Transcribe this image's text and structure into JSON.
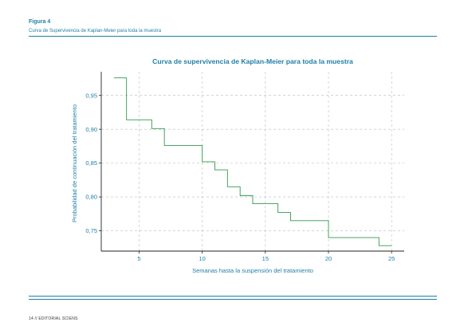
{
  "header": {
    "figure_label": "Figura 4",
    "figure_caption": "Curva de Supervivencia de Kaplan-Meier para toda la muestra"
  },
  "footer": {
    "text": "14 // EDITORIAL SCIENS"
  },
  "colors": {
    "accent": "#1f7fa8",
    "series": "#2f9a4f",
    "grid": "#bbbbbb"
  },
  "chart_data": {
    "type": "line",
    "step": true,
    "title": "Curva de supervivencia de Kaplan-Meier para toda la muestra",
    "xlabel": "Semanas hasta la suspensión del tratamiento",
    "ylabel": "Probabilidad de continuación del tratamiento",
    "xlim": [
      2,
      26
    ],
    "ylim": [
      0.72,
      0.985
    ],
    "xticks": [
      5,
      10,
      15,
      20,
      25
    ],
    "yticks": [
      0.75,
      0.8,
      0.85,
      0.9,
      0.95
    ],
    "xtick_labels": [
      "5",
      "10",
      "15",
      "20",
      "25"
    ],
    "ytick_labels": [
      "0,75",
      "0,80",
      "0,85",
      "0,90",
      "0,95"
    ],
    "grid": true,
    "series": [
      {
        "x": [
          3,
          4,
          4,
          6,
          6,
          7,
          7,
          10,
          10,
          11,
          11,
          12,
          12,
          13,
          13,
          14,
          14,
          16,
          16,
          17,
          17,
          20,
          20,
          24,
          24,
          25
        ],
        "y": [
          0.976,
          0.976,
          0.914,
          0.914,
          0.901,
          0.901,
          0.876,
          0.876,
          0.852,
          0.852,
          0.84,
          0.84,
          0.815,
          0.815,
          0.802,
          0.802,
          0.79,
          0.79,
          0.777,
          0.777,
          0.765,
          0.765,
          0.74,
          0.74,
          0.728,
          0.728
        ]
      }
    ]
  }
}
